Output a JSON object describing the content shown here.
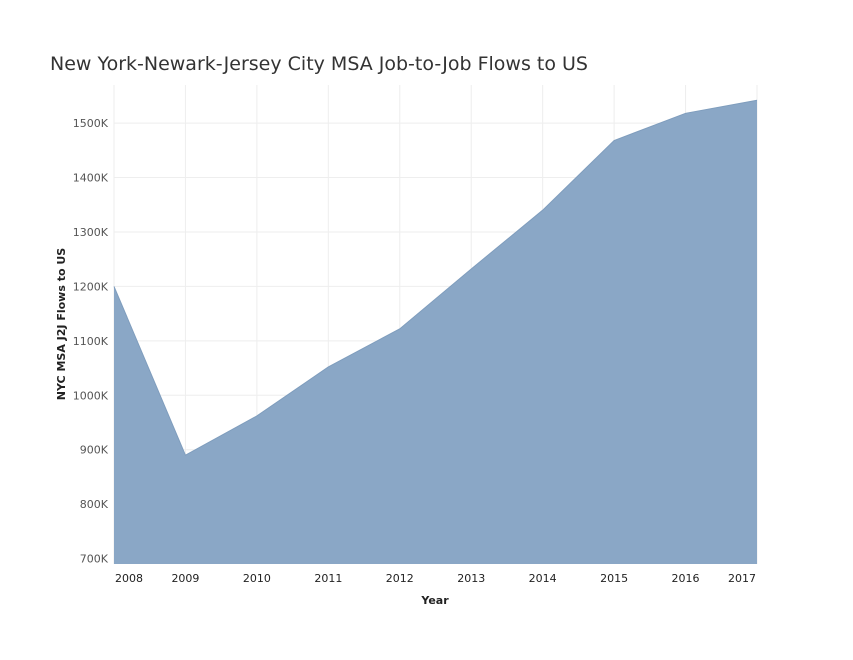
{
  "chart_data": {
    "type": "area",
    "title": "New York-Newark-Jersey City MSA Job-to-Job Flows to US",
    "xlabel": "Year",
    "ylabel": "NYC MSA J2J Flows to US",
    "x": [
      2008,
      2009,
      2010,
      2011,
      2012,
      2013,
      2014,
      2015,
      2016,
      2017
    ],
    "x_tick_labels": [
      "2008",
      "2009",
      "2010",
      "2011",
      "2012",
      "2013",
      "2014",
      "2015",
      "2016",
      "2017"
    ],
    "y_tick_values": [
      700000,
      800000,
      900000,
      1000000,
      1100000,
      1200000,
      1300000,
      1400000,
      1500000
    ],
    "y_tick_labels": [
      "700K",
      "800K",
      "900K",
      "1000K",
      "1100K",
      "1200K",
      "1300K",
      "1400K",
      "1500K"
    ],
    "series": [
      {
        "values": [
          1200000,
          890000,
          962000,
          1052000,
          1122000,
          1232000,
          1340000,
          1468000,
          1518000,
          1542000
        ]
      }
    ],
    "ylim": [
      690000,
      1570000
    ],
    "grid": true,
    "legend": "none",
    "colors": {
      "fill": "#8aa7c6",
      "stroke": "#7f9dbd",
      "grid": "#eeeeee"
    }
  }
}
